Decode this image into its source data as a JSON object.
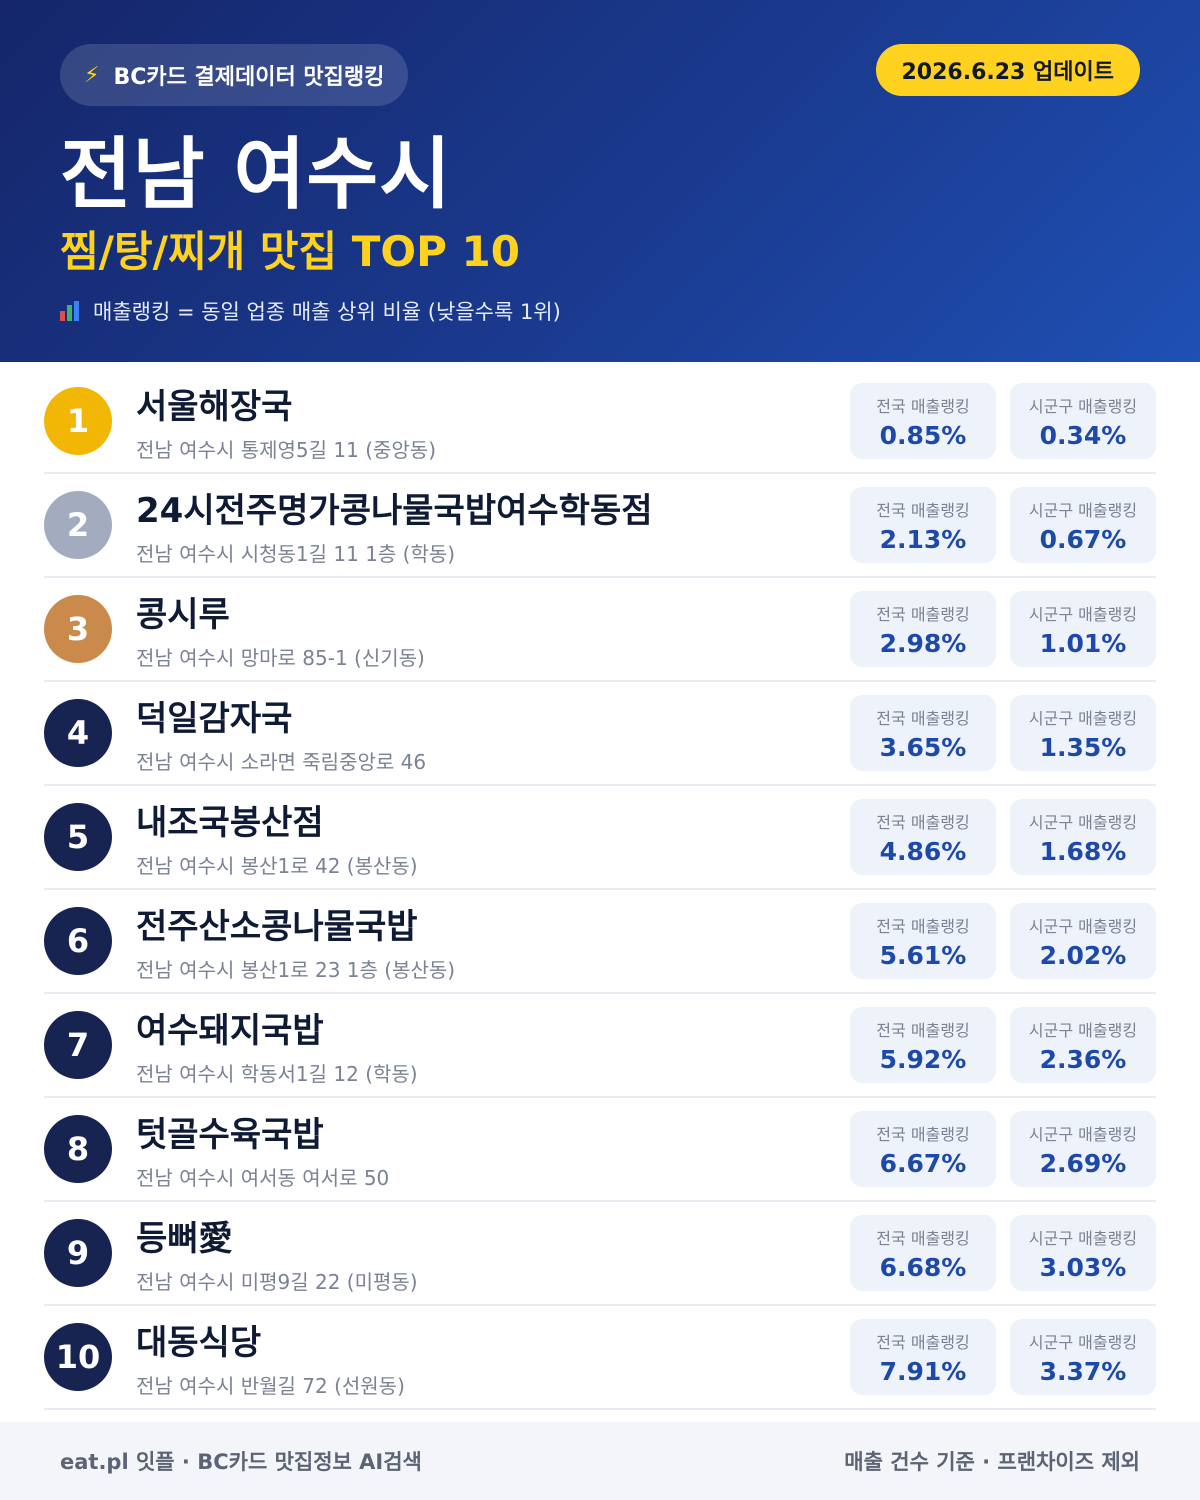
{
  "header": {
    "badge": "BC카드 결제데이터 맛집랭킹",
    "badge_icon": "lightning-icon",
    "update": "2026.6.23 업데이트",
    "city": "전남 여수시",
    "category": "찜/탕/찌개 맛집 TOP 10",
    "note": "매출랭킹 = 동일 업종 매출 상위 비율 (낮을수록 1위)",
    "note_icon": "bar-chart-icon"
  },
  "colors": {
    "header_start": "#15266a",
    "header_end": "#1f50b4",
    "accent_yellow": "#ffd21f",
    "gold": "#f2b705",
    "silver": "#a3acbf",
    "bronze": "#c98a4b",
    "navy": "#172452",
    "value_blue": "#1d4aa8"
  },
  "metric_labels": {
    "national": "전국 매출랭킹",
    "local": "시군구 매출랭킹"
  },
  "restaurants": [
    {
      "rank": "1",
      "name": "서울해장국",
      "address": "전남 여수시 통제영5길 11 (중앙동)",
      "national": "0.85%",
      "local": "0.34%"
    },
    {
      "rank": "2",
      "name": "24시전주명가콩나물국밥여수학동점",
      "address": "전남 여수시 시청동1길 11 1층 (학동)",
      "national": "2.13%",
      "local": "0.67%"
    },
    {
      "rank": "3",
      "name": "콩시루",
      "address": "전남 여수시 망마로 85-1 (신기동)",
      "national": "2.98%",
      "local": "1.01%"
    },
    {
      "rank": "4",
      "name": "덕일감자국",
      "address": "전남 여수시 소라면 죽림중앙로 46",
      "national": "3.65%",
      "local": "1.35%"
    },
    {
      "rank": "5",
      "name": "내조국봉산점",
      "address": "전남 여수시 봉산1로 42 (봉산동)",
      "national": "4.86%",
      "local": "1.68%"
    },
    {
      "rank": "6",
      "name": "전주산소콩나물국밥",
      "address": "전남 여수시 봉산1로 23 1층 (봉산동)",
      "national": "5.61%",
      "local": "2.02%"
    },
    {
      "rank": "7",
      "name": "여수돼지국밥",
      "address": "전남 여수시 학동서1길 12 (학동)",
      "national": "5.92%",
      "local": "2.36%"
    },
    {
      "rank": "8",
      "name": "텃골수육국밥",
      "address": "전남 여수시 여서동 여서로 50",
      "national": "6.67%",
      "local": "2.69%"
    },
    {
      "rank": "9",
      "name": "등뼈愛",
      "address": "전남 여수시 미평9길 22 (미평동)",
      "national": "6.68%",
      "local": "3.03%"
    },
    {
      "rank": "10",
      "name": "대동식당",
      "address": "전남 여수시 반월길 72 (선원동)",
      "national": "7.91%",
      "local": "3.37%"
    }
  ],
  "footer": {
    "left": "eat.pl 잇플 · BC카드 맛집정보 AI검색",
    "right": "매출 건수 기준 · 프랜차이즈 제외"
  }
}
